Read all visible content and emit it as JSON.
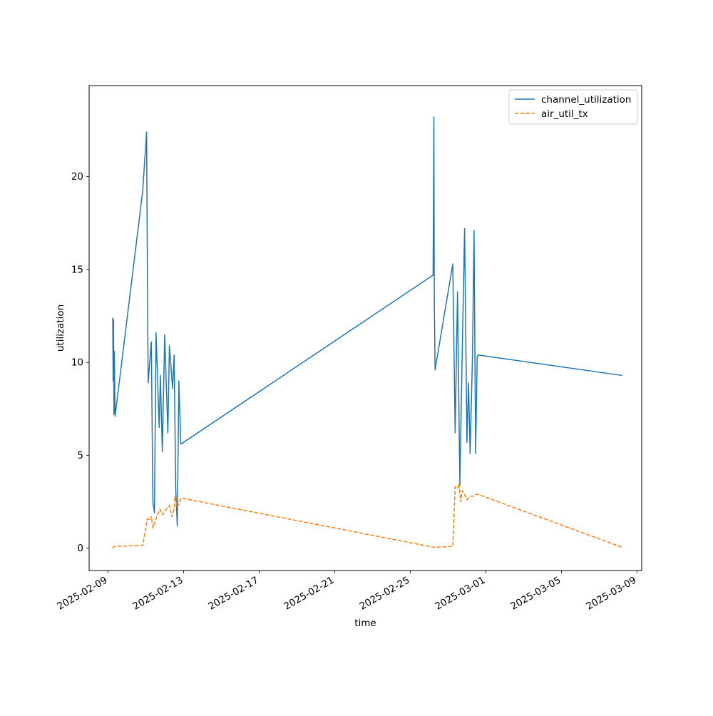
{
  "chart_data": {
    "type": "line",
    "title": "",
    "xlabel": "time",
    "ylabel": "utilization",
    "x_axis_type": "date",
    "xlim": [
      "2025-02-08T00:00",
      "2025-03-09T06:00"
    ],
    "ylim": [
      -1.2,
      24.9
    ],
    "x_ticks": [
      "2025-02-09",
      "2025-02-13",
      "2025-02-17",
      "2025-02-21",
      "2025-02-25",
      "2025-03-01",
      "2025-03-05",
      "2025-03-09"
    ],
    "y_ticks": [
      0,
      5,
      10,
      15,
      20
    ],
    "grid": false,
    "legend_position": "top-right",
    "series": [
      {
        "name": "channel_utilization",
        "color": "#1f77b4",
        "style": "solid",
        "points": [
          [
            "2025-02-09T06:00",
            12.4
          ],
          [
            "2025-02-09T06:30",
            9.0
          ],
          [
            "2025-02-09T07:00",
            12.3
          ],
          [
            "2025-02-09T07:30",
            7.2
          ],
          [
            "2025-02-09T08:00",
            10.6
          ],
          [
            "2025-02-09T09:00",
            7.1
          ],
          [
            "2025-02-10T20:00",
            19.2
          ],
          [
            "2025-02-11T01:00",
            22.4
          ],
          [
            "2025-02-11T02:00",
            15.0
          ],
          [
            "2025-02-11T03:00",
            8.9
          ],
          [
            "2025-02-11T05:30",
            10.3
          ],
          [
            "2025-02-11T07:00",
            11.1
          ],
          [
            "2025-02-11T09:00",
            2.5
          ],
          [
            "2025-02-11T11:00",
            1.9
          ],
          [
            "2025-02-11T13:00",
            11.6
          ],
          [
            "2025-02-11T17:00",
            6.5
          ],
          [
            "2025-02-11T18:30",
            9.3
          ],
          [
            "2025-02-11T21:00",
            5.2
          ],
          [
            "2025-02-12T00:00",
            11.5
          ],
          [
            "2025-02-12T04:00",
            6.2
          ],
          [
            "2025-02-12T06:00",
            10.9
          ],
          [
            "2025-02-12T10:00",
            8.6
          ],
          [
            "2025-02-12T12:00",
            10.4
          ],
          [
            "2025-02-12T14:00",
            3.2
          ],
          [
            "2025-02-12T16:00",
            1.2
          ],
          [
            "2025-02-12T18:00",
            9.0
          ],
          [
            "2025-02-12T20:30",
            5.6
          ],
          [
            "2025-02-26T05:00",
            14.7
          ],
          [
            "2025-02-26T06:00",
            23.2
          ],
          [
            "2025-02-26T06:30",
            13.5
          ],
          [
            "2025-02-26T07:30",
            9.6
          ],
          [
            "2025-02-27T06:00",
            15.3
          ],
          [
            "2025-02-27T09:00",
            6.2
          ],
          [
            "2025-02-27T12:00",
            13.8
          ],
          [
            "2025-02-27T15:00",
            3.4
          ],
          [
            "2025-02-27T18:00",
            10.5
          ],
          [
            "2025-02-27T21:00",
            17.2
          ],
          [
            "2025-02-28T00:00",
            5.7
          ],
          [
            "2025-02-28T02:00",
            8.9
          ],
          [
            "2025-02-28T04:00",
            5.1
          ],
          [
            "2025-02-28T07:00",
            10.3
          ],
          [
            "2025-02-28T09:00",
            17.1
          ],
          [
            "2025-02-28T11:00",
            5.1
          ],
          [
            "2025-02-28T13:00",
            10.3
          ],
          [
            "2025-02-28T14:00",
            10.4
          ],
          [
            "2025-03-08T05:00",
            9.3
          ]
        ]
      },
      {
        "name": "air_util_tx",
        "color": "#ff7f0e",
        "style": "dashed",
        "points": [
          [
            "2025-02-09T06:00",
            0.0
          ],
          [
            "2025-02-09T08:00",
            0.1
          ],
          [
            "2025-02-10T20:00",
            0.15
          ],
          [
            "2025-02-11T02:00",
            1.6
          ],
          [
            "2025-02-11T05:00",
            1.5
          ],
          [
            "2025-02-11T07:00",
            1.7
          ],
          [
            "2025-02-11T09:00",
            1.1
          ],
          [
            "2025-02-11T13:00",
            1.6
          ],
          [
            "2025-02-11T18:00",
            2.1
          ],
          [
            "2025-02-11T21:00",
            1.8
          ],
          [
            "2025-02-12T02:00",
            2.1
          ],
          [
            "2025-02-12T06:00",
            2.3
          ],
          [
            "2025-02-12T09:00",
            1.7
          ],
          [
            "2025-02-12T12:00",
            2.1
          ],
          [
            "2025-02-12T13:00",
            2.8
          ],
          [
            "2025-02-12T16:00",
            2.2
          ],
          [
            "2025-02-12T21:00",
            2.7
          ],
          [
            "2025-02-26T06:00",
            0.05
          ],
          [
            "2025-02-27T06:00",
            0.1
          ],
          [
            "2025-02-27T09:00",
            3.3
          ],
          [
            "2025-02-27T12:00",
            3.2
          ],
          [
            "2025-02-27T14:00",
            3.5
          ],
          [
            "2025-02-27T16:00",
            2.5
          ],
          [
            "2025-02-27T18:00",
            3.1
          ],
          [
            "2025-02-27T21:00",
            2.9
          ],
          [
            "2025-02-28T00:00",
            2.6
          ],
          [
            "2025-02-28T04:00",
            2.8
          ],
          [
            "2025-02-28T09:00",
            2.8
          ],
          [
            "2025-02-28T12:00",
            2.9
          ],
          [
            "2025-02-28T14:00",
            2.9
          ],
          [
            "2025-03-08T05:00",
            0.05
          ]
        ]
      }
    ]
  }
}
